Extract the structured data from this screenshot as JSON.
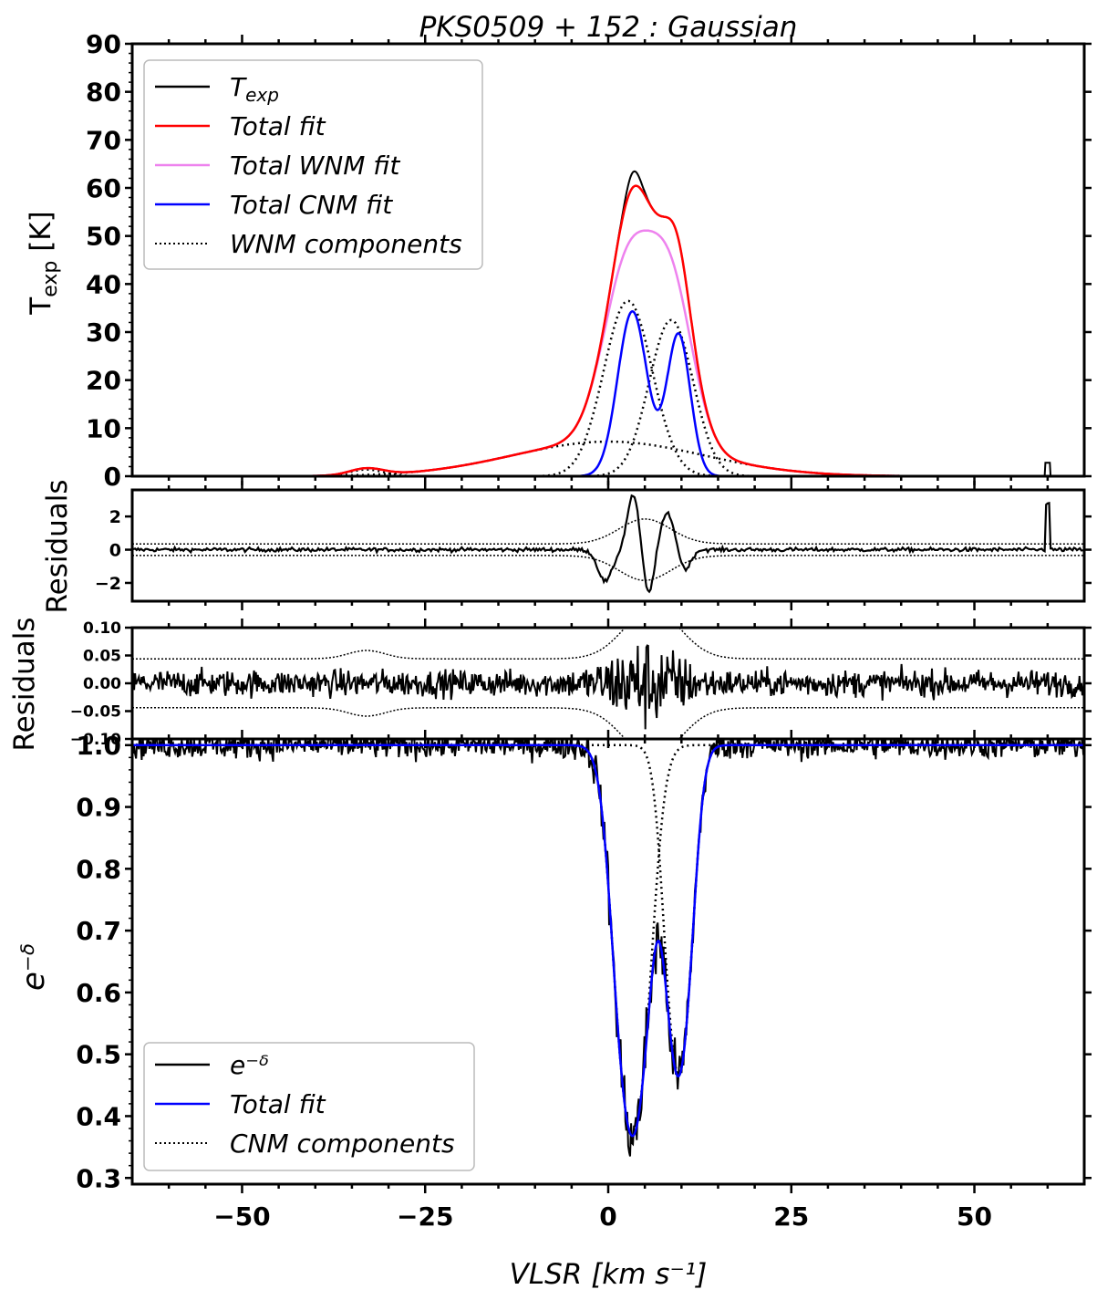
{
  "title": "PKS0509 + 152 : Gaussian",
  "chart_data": [
    {
      "panel": "emission",
      "type": "line",
      "ylabel_main": "T",
      "ylabel_sub": "exp",
      "ylabel_unit": " [K]",
      "xlim": [
        -65,
        65
      ],
      "ylim": [
        0,
        90
      ],
      "yticks": [
        "0",
        "10",
        "20",
        "30",
        "40",
        "50",
        "60",
        "70",
        "80",
        "90"
      ],
      "yticks_values": [
        0,
        10,
        20,
        30,
        40,
        50,
        60,
        70,
        80,
        90
      ],
      "legend": {
        "position": "top-left",
        "entries": [
          {
            "label": "T",
            "sub": "exp",
            "color": "#000000",
            "style": "solid"
          },
          {
            "label": "Total fit",
            "color": "#ff0000",
            "style": "solid"
          },
          {
            "label": "Total WNM fit",
            "color": "#ee82ee",
            "style": "solid"
          },
          {
            "label": "Total CNM fit",
            "color": "#0000ff",
            "style": "solid"
          },
          {
            "label": "WNM components",
            "color": "#000000",
            "style": "dotted"
          }
        ]
      },
      "wnm_components": [
        {
          "amp": 36.5,
          "center": 2.7,
          "sigma": 3.3
        },
        {
          "amp": 32.5,
          "center": 8.6,
          "sigma": 3.0
        },
        {
          "amp": 7.2,
          "center": 0.0,
          "sigma": 13.0
        },
        {
          "amp": 1.4,
          "center": -33.0,
          "sigma": 2.3
        }
      ],
      "cnm_components": [
        {
          "amp": 34.3,
          "center": 3.3,
          "sigma": 2.0
        },
        {
          "amp": 29.5,
          "center": 9.6,
          "sigma": 1.6
        }
      ],
      "spike": {
        "x": 60.0,
        "y": 2.8
      }
    },
    {
      "panel": "emission-residuals",
      "type": "line",
      "ylabel": "Residuals",
      "ylim": [
        -3.1,
        3.6
      ],
      "yticks": [
        "−2",
        "0",
        "2"
      ],
      "yticks_values": [
        -2,
        0,
        2
      ],
      "residual_shape": [
        {
          "amp": -1.9,
          "center": -0.4,
          "sigma": 1.0
        },
        {
          "amp": 3.3,
          "center": 3.4,
          "sigma": 0.8
        },
        {
          "amp": -2.7,
          "center": 5.5,
          "sigma": 0.7
        },
        {
          "amp": 2.2,
          "center": 8.1,
          "sigma": 0.9
        },
        {
          "amp": -1.2,
          "center": 10.5,
          "sigma": 0.8
        }
      ],
      "envelope_base": 0.35
    },
    {
      "panel": "absorption-residuals",
      "type": "line",
      "ylabel": "Residuals",
      "ylim": [
        -0.1,
        0.1
      ],
      "yticks": [
        "−0.10",
        "−0.05",
        "0.00",
        "0.05",
        "0.10"
      ],
      "yticks_values": [
        -0.1,
        -0.05,
        0.0,
        0.05,
        0.1
      ],
      "envelope_base": 0.044
    },
    {
      "panel": "absorption",
      "type": "line",
      "ylabel": "e⁻ᵟ",
      "xlabel": "VLSR [km s⁻¹]",
      "ylim": [
        0.29,
        1.01
      ],
      "yticks": [
        "0.3",
        "0.4",
        "0.5",
        "0.6",
        "0.7",
        "0.8",
        "0.9",
        "1.0"
      ],
      "yticks_values": [
        0.3,
        0.4,
        0.5,
        0.6,
        0.7,
        0.8,
        0.9,
        1.0
      ],
      "xticks": [
        "−50",
        "−25",
        "0",
        "25",
        "50"
      ],
      "xticks_values": [
        -50,
        -25,
        0,
        25,
        50
      ],
      "legend": {
        "position": "bottom-left",
        "entries": [
          {
            "label": "e⁻ᵟ",
            "color": "#000000",
            "style": "solid"
          },
          {
            "label": "Total fit",
            "color": "#0000ff",
            "style": "solid"
          },
          {
            "label": "CNM components",
            "color": "#000000",
            "style": "dotted"
          }
        ]
      },
      "tau_components": [
        {
          "tau": 1.0,
          "center": 3.3,
          "sigma": 2.0
        },
        {
          "tau": 0.76,
          "center": 9.6,
          "sigma": 1.6
        }
      ]
    }
  ]
}
